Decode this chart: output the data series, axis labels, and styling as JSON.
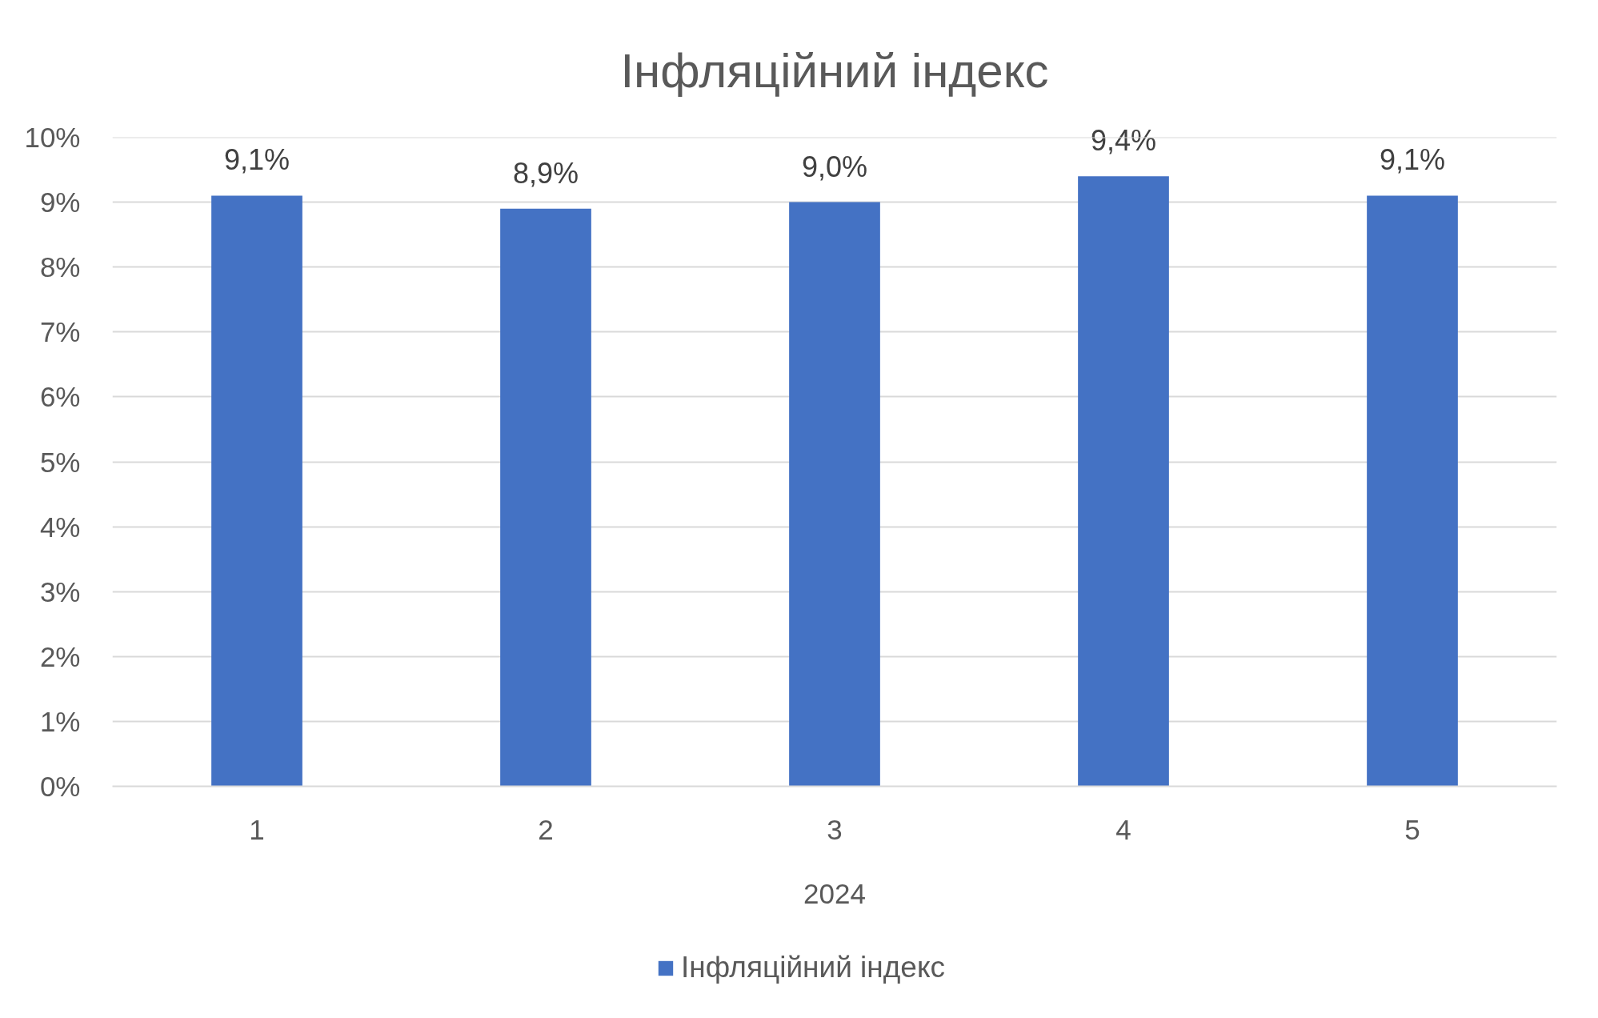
{
  "chart_data": {
    "type": "bar",
    "title": "Інфляційний індекс",
    "xlabel": "2024",
    "categories": [
      "1",
      "2",
      "3",
      "4",
      "5"
    ],
    "series": [
      {
        "name": "Інфляційний індекс",
        "color": "#4472c4",
        "values": [
          9.1,
          8.9,
          9.0,
          9.4,
          9.1
        ],
        "value_labels": [
          "9,1%",
          "8,9%",
          "9,0%",
          "9,4%",
          "9,1%"
        ]
      }
    ],
    "ylim": [
      0,
      10
    ],
    "yticks": [
      {
        "value": 0,
        "label": "0%"
      },
      {
        "value": 1,
        "label": "1%"
      },
      {
        "value": 2,
        "label": "2%"
      },
      {
        "value": 3,
        "label": "3%"
      },
      {
        "value": 4,
        "label": "4%"
      },
      {
        "value": 5,
        "label": "5%"
      },
      {
        "value": 6,
        "label": "6%"
      },
      {
        "value": 7,
        "label": "7%"
      },
      {
        "value": 8,
        "label": "8%"
      },
      {
        "value": 9,
        "label": "9%"
      },
      {
        "value": 10,
        "label": "10%"
      }
    ],
    "grid": "y",
    "legend": "bottom"
  }
}
